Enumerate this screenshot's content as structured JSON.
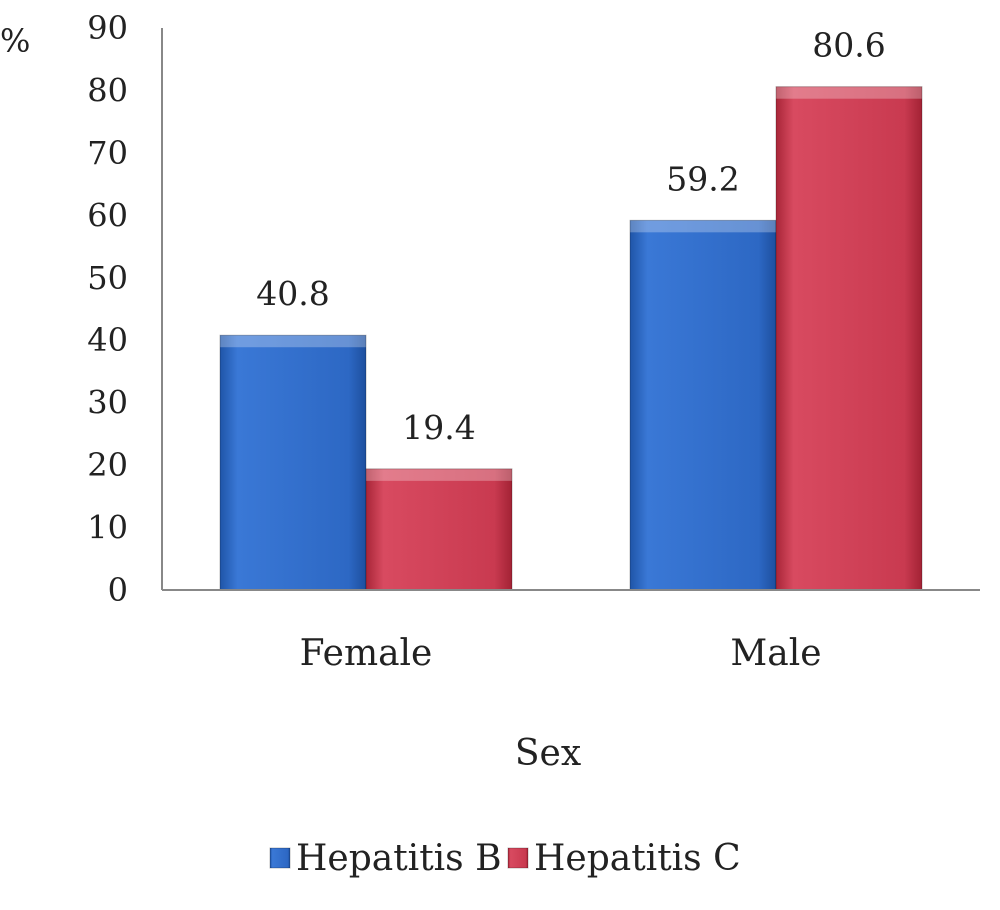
{
  "chart_data": {
    "type": "bar",
    "categories": [
      "Female",
      "Male"
    ],
    "series": [
      {
        "name": "Hepatitis B",
        "values": [
          40.8,
          59.2
        ],
        "value_labels": [
          "40.8",
          "59.2"
        ],
        "color": "#2f6bc8"
      },
      {
        "name": "Hepatitis C",
        "values": [
          19.4,
          80.6
        ],
        "value_labels": [
          "19.4",
          "80.6"
        ],
        "color": "#cc3a50"
      }
    ],
    "ylabel": "%",
    "xlabel": "Sex",
    "ylim": [
      0,
      90
    ],
    "yticks": [
      0,
      10,
      20,
      30,
      40,
      50,
      60,
      70,
      80,
      90
    ],
    "ytick_labels": [
      "0",
      "10",
      "20",
      "30",
      "40",
      "50",
      "60",
      "70",
      "80",
      "90"
    ],
    "grid": false,
    "legend_position": "bottom",
    "colors": {
      "axis": "#888888"
    }
  }
}
